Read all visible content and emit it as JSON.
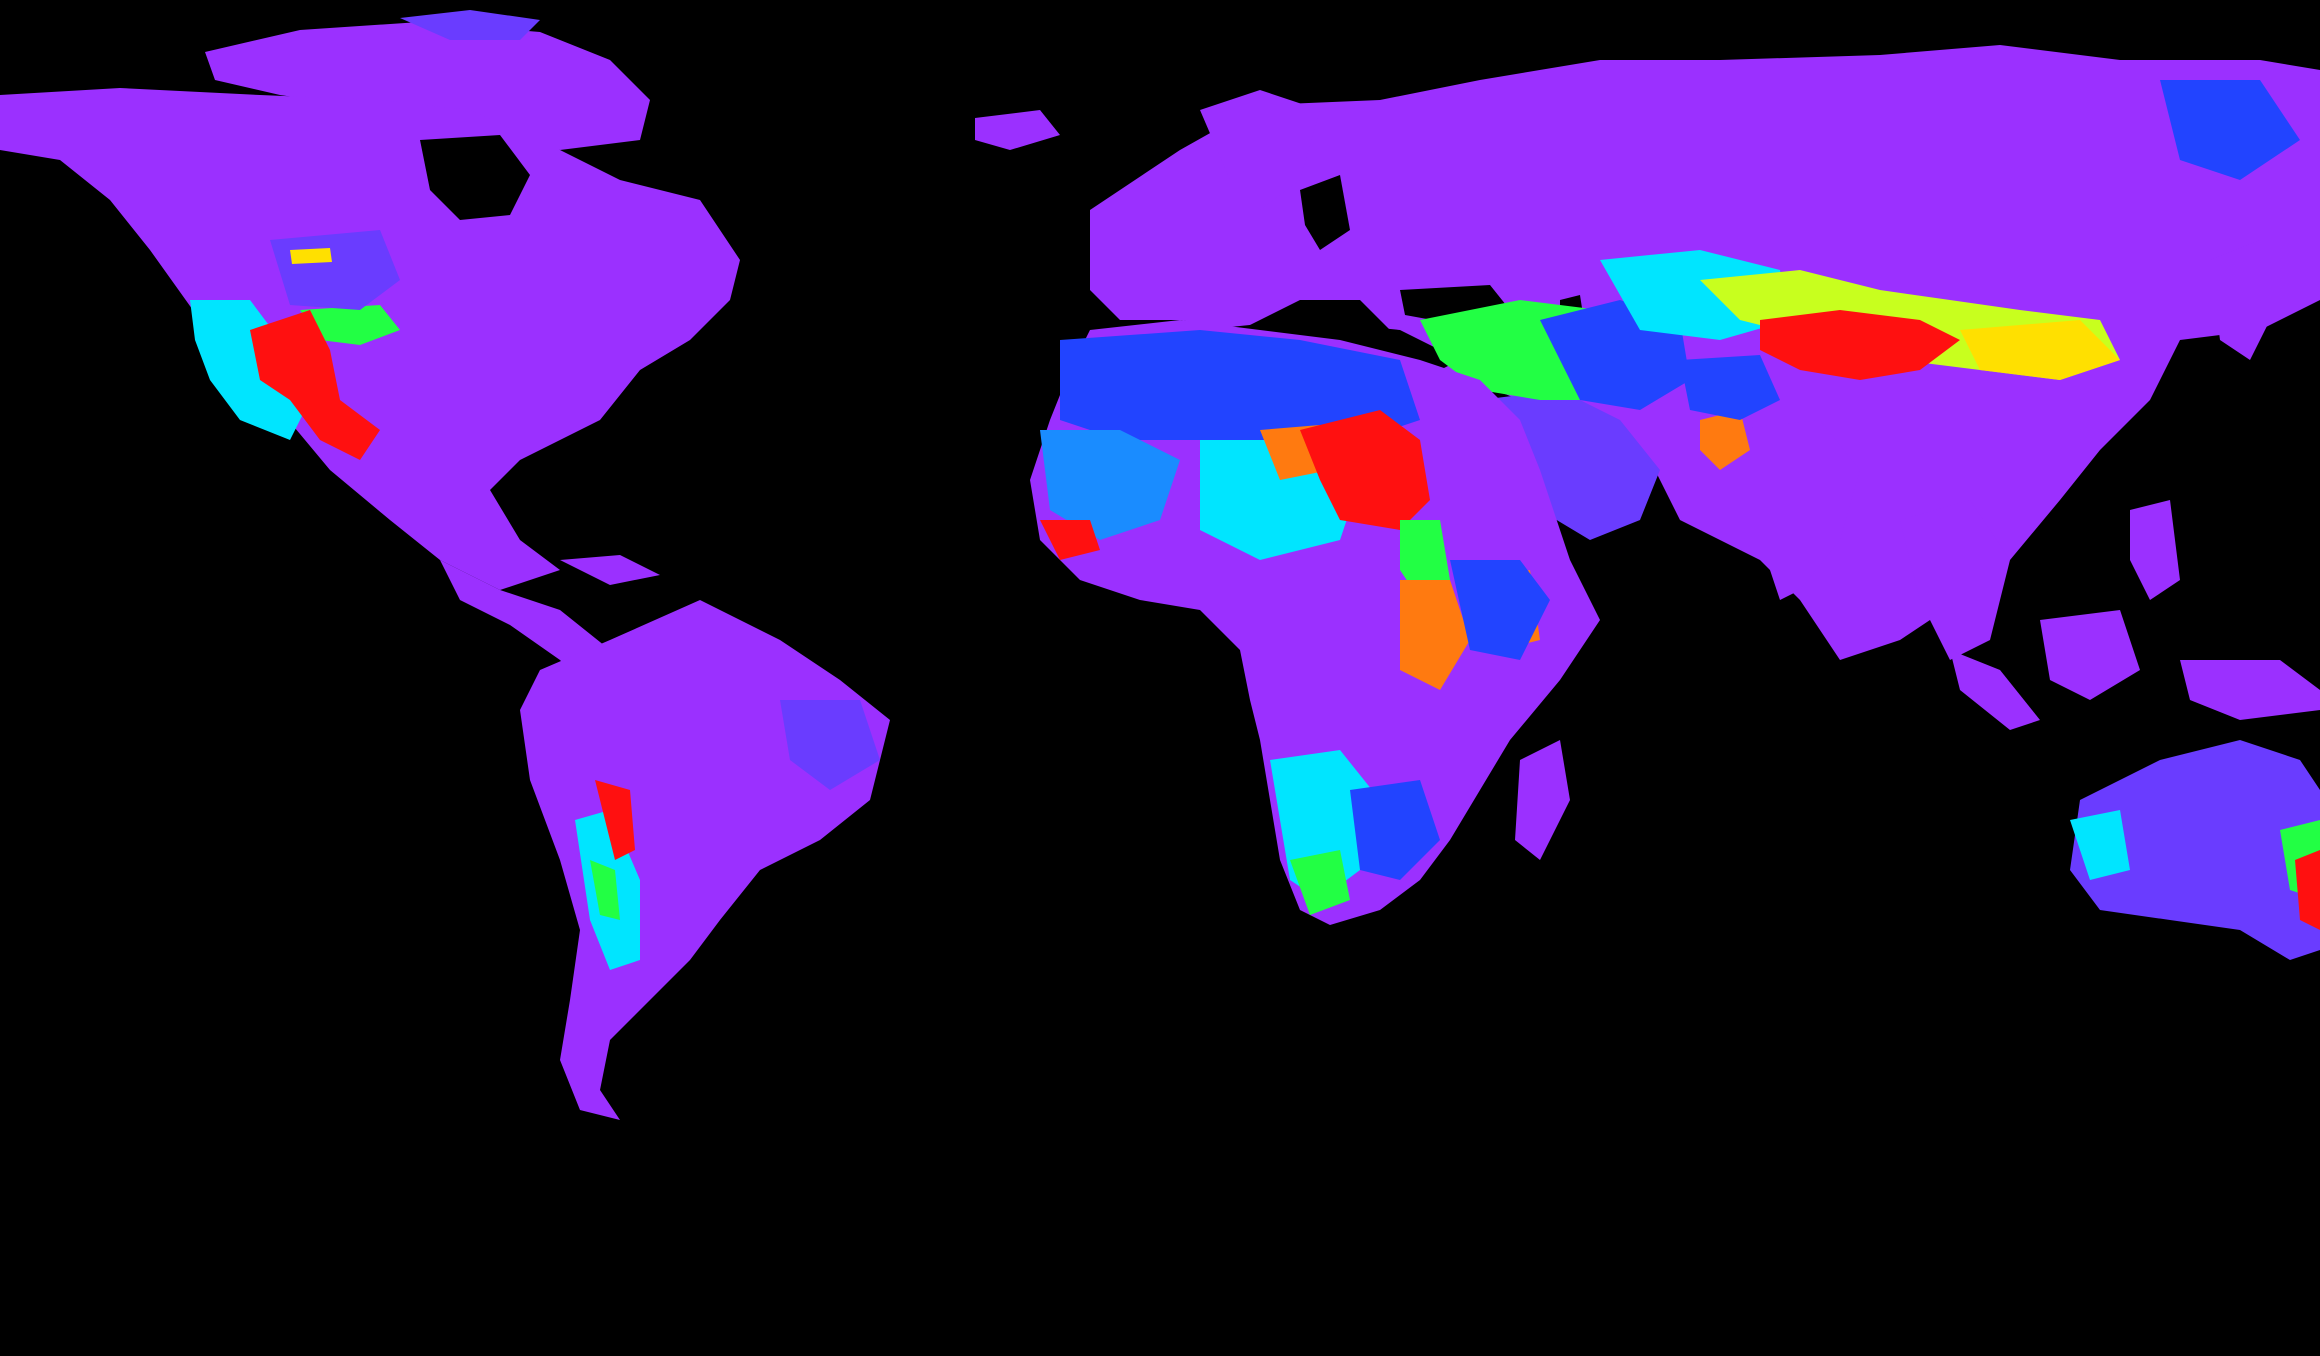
{
  "map": {
    "background_color": "#000000",
    "base_land_color": "#9b30ff",
    "palette": {
      "violet": "#9b30ff",
      "indigo": "#6a3cff",
      "blue": "#2244ff",
      "sky": "#1a8cff",
      "cyan": "#00e5ff",
      "green": "#22ff44",
      "yellow_green": "#c8ff1e",
      "yellow": "#ffe000",
      "orange": "#ff7a10",
      "red": "#ff1010"
    },
    "regions": [
      {
        "id": "north-america",
        "name": "north-america-landmass",
        "color": "violet"
      },
      {
        "id": "greenland",
        "name": "greenland-landmass",
        "color": "violet"
      },
      {
        "id": "south-america",
        "name": "south-america-landmass",
        "color": "violet"
      },
      {
        "id": "europe-asia",
        "name": "eurasia-landmass",
        "color": "violet"
      },
      {
        "id": "africa",
        "name": "africa-landmass",
        "color": "violet"
      },
      {
        "id": "australia",
        "name": "australia-landmass",
        "color": "indigo"
      },
      {
        "id": "madagascar",
        "name": "madagascar-landmass",
        "color": "violet"
      }
    ],
    "hotspots": [
      {
        "id": "sw-usa",
        "color": "red"
      },
      {
        "id": "sahel-west",
        "color": "cyan"
      },
      {
        "id": "sahara",
        "color": "blue"
      },
      {
        "id": "sudan",
        "color": "red"
      },
      {
        "id": "horn-africa",
        "color": "orange"
      },
      {
        "id": "middle-east",
        "color": "green"
      },
      {
        "id": "central-asia",
        "color": "yellow_green"
      },
      {
        "id": "tibet",
        "color": "red"
      },
      {
        "id": "southern-africa",
        "color": "cyan"
      },
      {
        "id": "andes",
        "color": "red"
      },
      {
        "id": "australia-east",
        "color": "red"
      }
    ]
  }
}
